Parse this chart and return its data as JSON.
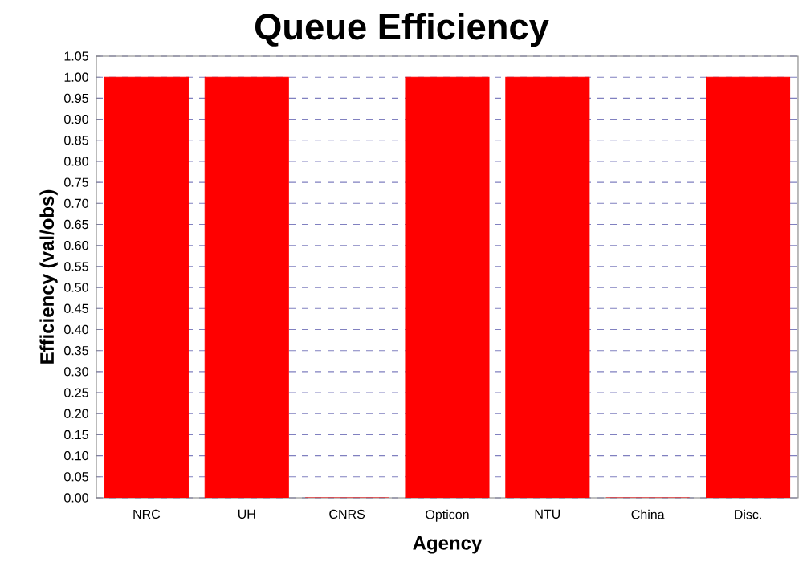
{
  "chart_data": {
    "type": "bar",
    "title": "Queue Efficiency",
    "xlabel": "Agency",
    "ylabel": "Efficiency (val/obs)",
    "categories": [
      "NRC",
      "UH",
      "CNRS",
      "Opticon",
      "NTU",
      "China",
      "Disc."
    ],
    "values": [
      1.0,
      1.0,
      0,
      1.0,
      1.0,
      0,
      1.0
    ],
    "color": "#ff0000",
    "ylim": [
      0,
      1.05
    ],
    "yticks": [
      {
        "value": 0,
        "label": "0.00"
      },
      {
        "value": 0.05,
        "label": "0.05"
      },
      {
        "value": 0.1,
        "label": "0.10"
      },
      {
        "value": 0.15,
        "label": "0.15"
      },
      {
        "value": 0.2,
        "label": "0.20"
      },
      {
        "value": 0.25,
        "label": "0.25"
      },
      {
        "value": 0.3,
        "label": "0.30"
      },
      {
        "value": 0.35,
        "label": "0.35"
      },
      {
        "value": 0.4,
        "label": "0.40"
      },
      {
        "value": 0.45,
        "label": "0.45"
      },
      {
        "value": 0.5,
        "label": "0.50"
      },
      {
        "value": 0.55,
        "label": "0.55"
      },
      {
        "value": 0.6,
        "label": "0.60"
      },
      {
        "value": 0.65,
        "label": "0.65"
      },
      {
        "value": 0.7,
        "label": "0.70"
      },
      {
        "value": 0.75,
        "label": "0.75"
      },
      {
        "value": 0.8,
        "label": "0.80"
      },
      {
        "value": 0.85,
        "label": "0.85"
      },
      {
        "value": 0.9,
        "label": "0.90"
      },
      {
        "value": 0.95,
        "label": "0.95"
      },
      {
        "value": 1.0,
        "label": "1.00"
      },
      {
        "value": 1.05,
        "label": "1.05"
      }
    ],
    "grid": "y"
  }
}
